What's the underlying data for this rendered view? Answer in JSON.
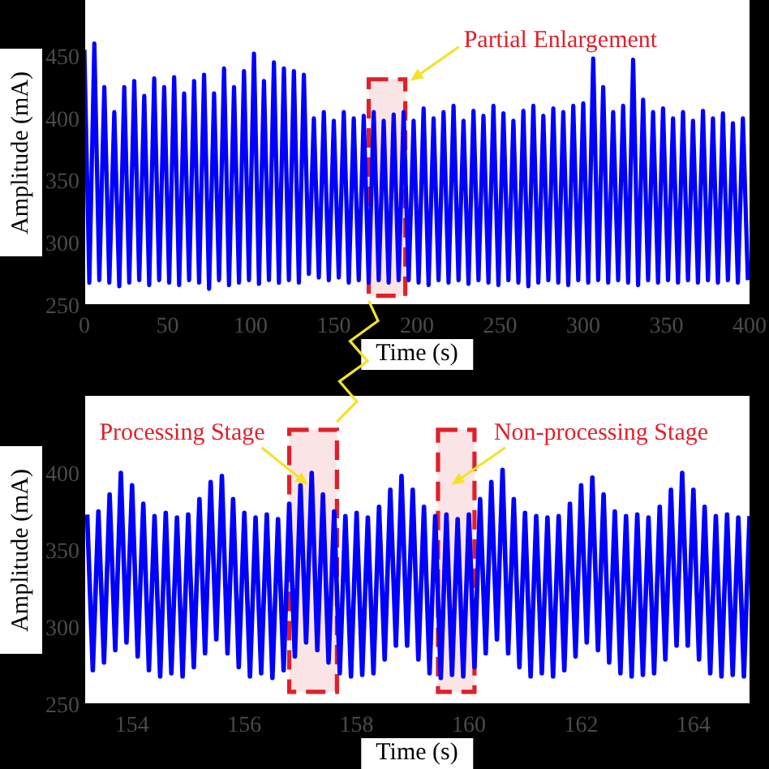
{
  "chart_data": [
    {
      "type": "line",
      "xlabel": "Time (s)",
      "ylabel": "Amplitude (mA)",
      "x": [
        0,
        3,
        6,
        9,
        12,
        15,
        18,
        21,
        24,
        27,
        30,
        33,
        36,
        39,
        42,
        45,
        48,
        51,
        54,
        57,
        60,
        63,
        66,
        69,
        72,
        75,
        78,
        81,
        84,
        87,
        90,
        93,
        96,
        99,
        102,
        105,
        108,
        111,
        114,
        117,
        120,
        123,
        126,
        129,
        132,
        135,
        138,
        141,
        144,
        147,
        150,
        153,
        156,
        159,
        162,
        165,
        168,
        171,
        174,
        177,
        180,
        183,
        186,
        189,
        192,
        195,
        198,
        201,
        204,
        207,
        210,
        213,
        216,
        219,
        222,
        225,
        228,
        231,
        234,
        237,
        240,
        243,
        246,
        249,
        252,
        255,
        258,
        261,
        264,
        267,
        270,
        273,
        276,
        279,
        282,
        285,
        288,
        291,
        294,
        297,
        300,
        303,
        306,
        309,
        312,
        315,
        318,
        321,
        324,
        327,
        330,
        333,
        336,
        339,
        342,
        345,
        348,
        351,
        354,
        357,
        360,
        363,
        366,
        369,
        372,
        375,
        378,
        381,
        384,
        387,
        390,
        393,
        396,
        399
      ],
      "series": [
        {
          "color": "#0000ff",
          "values": [
            455,
            268,
            460,
            270,
            425,
            268,
            405,
            265,
            425,
            268,
            430,
            270,
            418,
            266,
            432,
            270,
            425,
            268,
            433,
            266,
            420,
            270,
            430,
            268,
            435,
            263,
            420,
            270,
            440,
            266,
            425,
            268,
            438,
            270,
            452,
            267,
            430,
            270,
            445,
            268,
            440,
            270,
            438,
            268,
            435,
            275,
            400,
            272,
            405,
            270,
            398,
            272,
            405,
            268,
            400,
            270,
            402,
            268,
            405,
            270,
            398,
            268,
            403,
            270,
            405,
            270,
            398,
            268,
            408,
            266,
            400,
            270,
            405,
            268,
            410,
            270,
            398,
            267,
            406,
            270,
            402,
            268,
            410,
            266,
            404,
            270,
            398,
            268,
            406,
            265,
            410,
            268,
            402,
            270,
            408,
            268,
            405,
            266,
            410,
            270,
            412,
            268,
            448,
            270,
            425,
            268,
            405,
            270,
            410,
            268,
            447,
            266,
            415,
            270,
            405,
            268,
            408,
            270,
            400,
            268,
            405,
            270,
            398,
            268,
            406,
            270,
            400,
            268,
            404,
            270,
            396,
            268,
            400,
            270
          ]
        }
      ],
      "xlim": [
        0,
        400
      ],
      "ylim": [
        250,
        495
      ],
      "xticks": [
        0,
        50,
        100,
        150,
        200,
        250,
        300,
        350,
        400
      ],
      "yticks": [
        250,
        300,
        350,
        400,
        450
      ],
      "bands": [
        {
          "axis": "x",
          "from": 171,
          "to": 193,
          "label": "Partial Enlargement",
          "color": "#e0202a"
        }
      ]
    },
    {
      "type": "line",
      "xlabel": "Time (s)",
      "ylabel": "Amplitude (mA)",
      "x": [
        153.2,
        153.3,
        153.4,
        153.5,
        153.6,
        153.7,
        153.8,
        153.9,
        154.0,
        154.1,
        154.2,
        154.3,
        154.4,
        154.5,
        154.6,
        154.7,
        154.8,
        154.9,
        155.0,
        155.1,
        155.2,
        155.3,
        155.4,
        155.5,
        155.6,
        155.7,
        155.8,
        155.9,
        156.0,
        156.1,
        156.2,
        156.3,
        156.4,
        156.5,
        156.6,
        156.7,
        156.8,
        156.9,
        157.0,
        157.1,
        157.2,
        157.3,
        157.4,
        157.5,
        157.6,
        157.7,
        157.8,
        157.9,
        158.0,
        158.1,
        158.2,
        158.3,
        158.4,
        158.5,
        158.6,
        158.7,
        158.8,
        158.9,
        159.0,
        159.1,
        159.2,
        159.3,
        159.4,
        159.5,
        159.6,
        159.7,
        159.8,
        159.9,
        160.0,
        160.1,
        160.2,
        160.3,
        160.4,
        160.5,
        160.6,
        160.7,
        160.8,
        160.9,
        161.0,
        161.1,
        161.2,
        161.3,
        161.4,
        161.5,
        161.6,
        161.7,
        161.8,
        161.9,
        162.0,
        162.1,
        162.2,
        162.3,
        162.4,
        162.5,
        162.6,
        162.7,
        162.8,
        162.9,
        163.0,
        163.1,
        163.2,
        163.3,
        163.4,
        163.5,
        163.6,
        163.7,
        163.8,
        163.9,
        164.0,
        164.1,
        164.2,
        164.3,
        164.4,
        164.5,
        164.6,
        164.7,
        164.8,
        164.9,
        165.0
      ],
      "series": [
        {
          "color": "#0000ff",
          "values": [
            373,
            272,
            375,
            277,
            386,
            285,
            400,
            290,
            392,
            281,
            380,
            272,
            372,
            268,
            374,
            270,
            371,
            268,
            373,
            274,
            383,
            283,
            394,
            292,
            398,
            283,
            383,
            274,
            374,
            268,
            371,
            270,
            373,
            267,
            370,
            272,
            380,
            281,
            392,
            290,
            400,
            285,
            386,
            277,
            375,
            270,
            372,
            268,
            374,
            269,
            371,
            270,
            378,
            279,
            389,
            288,
            398,
            288,
            389,
            279,
            378,
            270,
            372,
            267,
            373,
            269,
            370,
            268,
            373,
            274,
            383,
            283,
            394,
            292,
            402,
            283,
            383,
            274,
            374,
            268,
            372,
            270,
            371,
            268,
            372,
            272,
            380,
            281,
            392,
            290,
            397,
            285,
            386,
            277,
            375,
            270,
            372,
            268,
            373,
            269,
            371,
            270,
            378,
            279,
            389,
            288,
            400,
            288,
            389,
            279,
            378,
            270,
            372,
            268,
            373,
            269,
            371,
            268,
            372
          ]
        }
      ],
      "xlim": [
        153.15,
        165
      ],
      "ylim": [
        250,
        450
      ],
      "xticks": [
        154,
        156,
        158,
        160,
        162,
        164
      ],
      "yticks": [
        250,
        300,
        350,
        400
      ],
      "bands": [
        {
          "axis": "x",
          "from": 156.8,
          "to": 157.65,
          "label": "Processing Stage",
          "color": "#e0202a"
        },
        {
          "axis": "x",
          "from": 159.45,
          "to": 160.1,
          "label": "Non-processing Stage",
          "color": "#e0202a"
        }
      ]
    }
  ]
}
